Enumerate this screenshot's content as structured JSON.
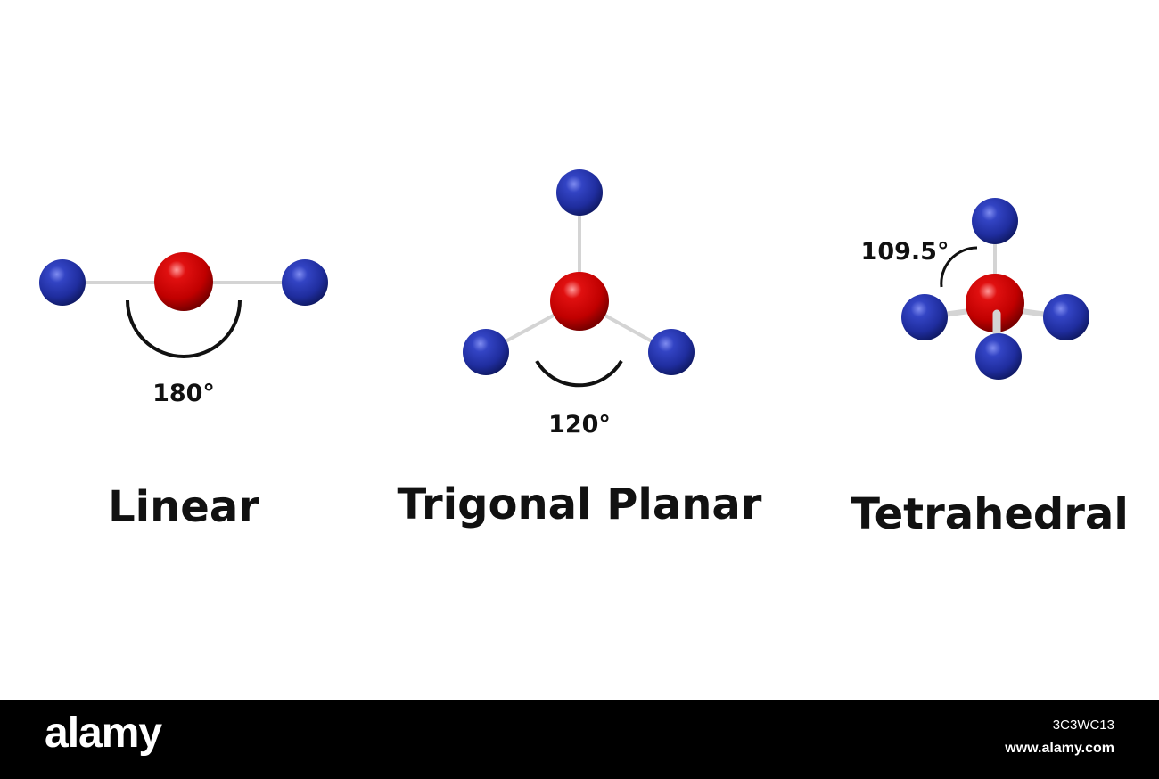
{
  "colors": {
    "central_atom": "#cc0000",
    "outer_atom": "#2233aa",
    "bond": "#d6d6d6",
    "arc": "#111111",
    "footer_background": "#000000",
    "footer_text": "#ffffff"
  },
  "geometries": [
    {
      "name": "Linear",
      "angle": "180°"
    },
    {
      "name": "Trigonal Planar",
      "angle": "120°"
    },
    {
      "name": "Tetrahedral",
      "angle": "109.5°"
    }
  ],
  "footer": {
    "brand": "alamy",
    "image_id": "3C3WC13",
    "site": "www.alamy.com"
  }
}
